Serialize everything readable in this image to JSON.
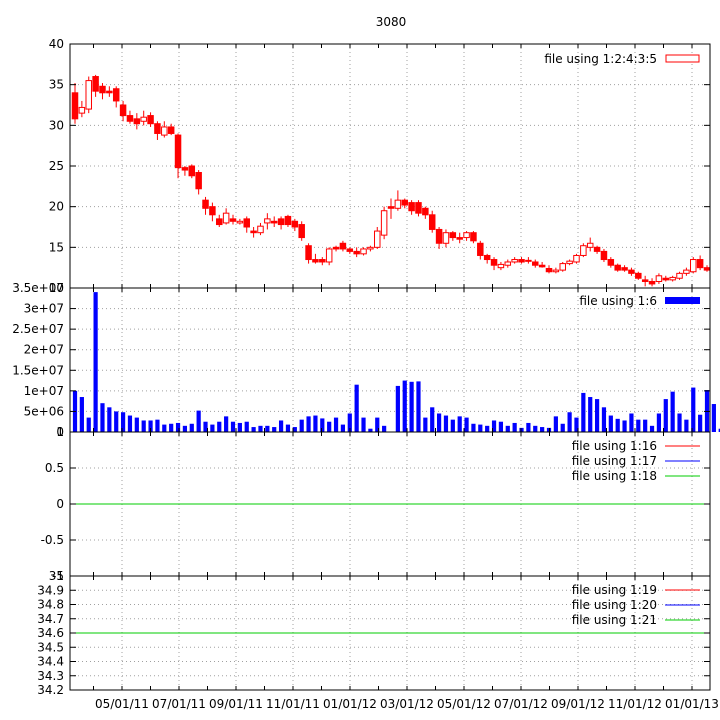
{
  "title": "3080",
  "colors": {
    "candle": "#ff0000",
    "volume": "#0000ff",
    "line_red": "#ff0000",
    "line_blue": "#0000ff",
    "line_green": "#00cc00",
    "grid": "#a0a0a0"
  },
  "x_ticks": [
    "05/01/11",
    "07/01/11",
    "09/01/11",
    "11/01/11",
    "01/01/12",
    "03/01/12",
    "05/01/12",
    "07/01/12",
    "09/01/12",
    "11/01/12",
    "01/01/13"
  ],
  "chart_data": [
    {
      "type": "candlestick",
      "ylim": [
        10,
        40
      ],
      "yticks": [
        "10",
        "15",
        "20",
        "25",
        "30",
        "35",
        "40"
      ],
      "legend": "file using 1:2:4:3:5",
      "candles": [
        {
          "o": 34.0,
          "h": 35.2,
          "l": 30.2,
          "c": 30.8
        },
        {
          "o": 31.5,
          "h": 33.0,
          "l": 31.0,
          "c": 32.2
        },
        {
          "o": 32.0,
          "h": 36.0,
          "l": 31.5,
          "c": 35.5
        },
        {
          "o": 36.0,
          "h": 36.2,
          "l": 33.5,
          "c": 34.2
        },
        {
          "o": 34.8,
          "h": 35.2,
          "l": 33.2,
          "c": 34.0
        },
        {
          "o": 34.2,
          "h": 34.8,
          "l": 33.5,
          "c": 34.0
        },
        {
          "o": 34.5,
          "h": 34.8,
          "l": 32.2,
          "c": 33.0
        },
        {
          "o": 32.5,
          "h": 33.0,
          "l": 30.5,
          "c": 31.2
        },
        {
          "o": 31.2,
          "h": 31.8,
          "l": 30.2,
          "c": 30.5
        },
        {
          "o": 30.8,
          "h": 31.5,
          "l": 29.5,
          "c": 30.2
        },
        {
          "o": 30.5,
          "h": 31.8,
          "l": 30.0,
          "c": 31.0
        },
        {
          "o": 31.2,
          "h": 31.6,
          "l": 29.8,
          "c": 30.2
        },
        {
          "o": 30.2,
          "h": 30.5,
          "l": 28.2,
          "c": 29.0
        },
        {
          "o": 28.8,
          "h": 30.5,
          "l": 28.5,
          "c": 29.8
        },
        {
          "o": 29.8,
          "h": 30.2,
          "l": 28.8,
          "c": 29.0
        },
        {
          "o": 28.8,
          "h": 29.0,
          "l": 23.5,
          "c": 24.8
        },
        {
          "o": 24.8,
          "h": 25.0,
          "l": 23.8,
          "c": 24.5
        },
        {
          "o": 25.0,
          "h": 25.2,
          "l": 23.5,
          "c": 23.8
        },
        {
          "o": 24.2,
          "h": 24.5,
          "l": 21.5,
          "c": 22.2
        },
        {
          "o": 20.8,
          "h": 21.2,
          "l": 19.0,
          "c": 19.8
        },
        {
          "o": 20.0,
          "h": 20.5,
          "l": 18.2,
          "c": 19.0
        },
        {
          "o": 18.5,
          "h": 19.0,
          "l": 17.5,
          "c": 17.8
        },
        {
          "o": 18.0,
          "h": 19.8,
          "l": 17.8,
          "c": 19.2
        },
        {
          "o": 18.5,
          "h": 19.0,
          "l": 17.8,
          "c": 18.2
        },
        {
          "o": 18.0,
          "h": 18.5,
          "l": 17.8,
          "c": 18.2
        },
        {
          "o": 18.5,
          "h": 18.8,
          "l": 16.8,
          "c": 17.5
        },
        {
          "o": 17.0,
          "h": 17.5,
          "l": 16.2,
          "c": 16.8
        },
        {
          "o": 16.8,
          "h": 18.0,
          "l": 16.5,
          "c": 17.6
        },
        {
          "o": 18.0,
          "h": 19.2,
          "l": 17.2,
          "c": 18.5
        },
        {
          "o": 18.2,
          "h": 18.8,
          "l": 17.5,
          "c": 18.0
        },
        {
          "o": 18.5,
          "h": 18.8,
          "l": 17.2,
          "c": 17.8
        },
        {
          "o": 18.8,
          "h": 19.0,
          "l": 17.5,
          "c": 17.8
        },
        {
          "o": 18.2,
          "h": 18.5,
          "l": 17.0,
          "c": 17.5
        },
        {
          "o": 17.8,
          "h": 18.2,
          "l": 15.8,
          "c": 16.2
        },
        {
          "o": 15.2,
          "h": 15.5,
          "l": 13.0,
          "c": 13.5
        },
        {
          "o": 13.5,
          "h": 14.2,
          "l": 13.0,
          "c": 13.2
        },
        {
          "o": 13.5,
          "h": 13.8,
          "l": 12.8,
          "c": 13.2
        },
        {
          "o": 13.2,
          "h": 15.0,
          "l": 12.8,
          "c": 14.8
        },
        {
          "o": 15.0,
          "h": 15.2,
          "l": 14.5,
          "c": 14.8
        },
        {
          "o": 15.5,
          "h": 15.8,
          "l": 14.5,
          "c": 14.8
        },
        {
          "o": 14.8,
          "h": 15.0,
          "l": 14.2,
          "c": 14.5
        },
        {
          "o": 14.5,
          "h": 15.0,
          "l": 13.8,
          "c": 14.2
        },
        {
          "o": 14.2,
          "h": 15.0,
          "l": 14.0,
          "c": 14.8
        },
        {
          "o": 14.8,
          "h": 15.2,
          "l": 14.5,
          "c": 15.0
        },
        {
          "o": 15.0,
          "h": 17.5,
          "l": 14.8,
          "c": 17.0
        },
        {
          "o": 16.5,
          "h": 20.0,
          "l": 16.0,
          "c": 19.5
        },
        {
          "o": 20.0,
          "h": 21.0,
          "l": 18.5,
          "c": 19.8
        },
        {
          "o": 19.8,
          "h": 22.0,
          "l": 19.5,
          "c": 20.8
        },
        {
          "o": 20.8,
          "h": 21.0,
          "l": 19.8,
          "c": 20.2
        },
        {
          "o": 20.5,
          "h": 20.8,
          "l": 19.0,
          "c": 19.5
        },
        {
          "o": 20.5,
          "h": 20.8,
          "l": 18.8,
          "c": 19.2
        },
        {
          "o": 19.8,
          "h": 20.0,
          "l": 18.5,
          "c": 19.0
        },
        {
          "o": 19.0,
          "h": 19.5,
          "l": 16.8,
          "c": 17.2
        },
        {
          "o": 17.2,
          "h": 17.5,
          "l": 14.8,
          "c": 15.5
        },
        {
          "o": 15.5,
          "h": 17.2,
          "l": 15.0,
          "c": 16.8
        },
        {
          "o": 16.8,
          "h": 17.0,
          "l": 15.8,
          "c": 16.2
        },
        {
          "o": 16.2,
          "h": 16.8,
          "l": 15.5,
          "c": 16.0
        },
        {
          "o": 16.2,
          "h": 17.0,
          "l": 15.8,
          "c": 16.8
        },
        {
          "o": 16.8,
          "h": 17.0,
          "l": 15.5,
          "c": 15.8
        },
        {
          "o": 15.5,
          "h": 15.8,
          "l": 13.5,
          "c": 14.0
        },
        {
          "o": 14.0,
          "h": 14.2,
          "l": 13.0,
          "c": 13.5
        },
        {
          "o": 13.5,
          "h": 13.8,
          "l": 12.2,
          "c": 12.8
        },
        {
          "o": 12.5,
          "h": 13.2,
          "l": 12.2,
          "c": 12.9
        },
        {
          "o": 12.8,
          "h": 13.5,
          "l": 12.5,
          "c": 13.2
        },
        {
          "o": 13.2,
          "h": 13.8,
          "l": 13.0,
          "c": 13.5
        },
        {
          "o": 13.5,
          "h": 13.8,
          "l": 13.0,
          "c": 13.2
        },
        {
          "o": 13.4,
          "h": 13.8,
          "l": 13.0,
          "c": 13.3
        },
        {
          "o": 13.2,
          "h": 13.5,
          "l": 12.5,
          "c": 12.8
        },
        {
          "o": 12.8,
          "h": 13.2,
          "l": 12.5,
          "c": 12.6
        },
        {
          "o": 12.4,
          "h": 12.8,
          "l": 11.8,
          "c": 12.0
        },
        {
          "o": 12.0,
          "h": 12.5,
          "l": 11.8,
          "c": 12.2
        },
        {
          "o": 12.2,
          "h": 13.2,
          "l": 12.0,
          "c": 13.0
        },
        {
          "o": 13.0,
          "h": 13.5,
          "l": 12.8,
          "c": 13.3
        },
        {
          "o": 13.2,
          "h": 14.2,
          "l": 13.0,
          "c": 14.0
        },
        {
          "o": 14.0,
          "h": 15.5,
          "l": 13.8,
          "c": 15.2
        },
        {
          "o": 15.0,
          "h": 16.2,
          "l": 14.5,
          "c": 15.5
        },
        {
          "o": 15.0,
          "h": 15.2,
          "l": 14.2,
          "c": 14.5
        },
        {
          "o": 14.5,
          "h": 14.8,
          "l": 13.2,
          "c": 13.5
        },
        {
          "o": 13.5,
          "h": 13.8,
          "l": 12.5,
          "c": 12.8
        },
        {
          "o": 12.8,
          "h": 13.0,
          "l": 12.0,
          "c": 12.2
        },
        {
          "o": 12.5,
          "h": 12.8,
          "l": 12.0,
          "c": 12.2
        },
        {
          "o": 12.2,
          "h": 12.5,
          "l": 11.5,
          "c": 11.8
        },
        {
          "o": 11.8,
          "h": 12.0,
          "l": 11.0,
          "c": 11.2
        },
        {
          "o": 11.0,
          "h": 11.5,
          "l": 10.2,
          "c": 10.8
        },
        {
          "o": 10.8,
          "h": 11.2,
          "l": 10.2,
          "c": 10.5
        },
        {
          "o": 10.8,
          "h": 11.8,
          "l": 10.5,
          "c": 11.5
        },
        {
          "o": 11.2,
          "h": 11.5,
          "l": 10.8,
          "c": 11.0
        },
        {
          "o": 11.0,
          "h": 11.5,
          "l": 10.8,
          "c": 11.3
        },
        {
          "o": 11.2,
          "h": 12.0,
          "l": 11.0,
          "c": 11.8
        },
        {
          "o": 11.8,
          "h": 12.5,
          "l": 11.5,
          "c": 12.2
        },
        {
          "o": 12.0,
          "h": 13.8,
          "l": 11.8,
          "c": 13.5
        },
        {
          "o": 13.5,
          "h": 14.0,
          "l": 12.2,
          "c": 12.5
        },
        {
          "o": 12.5,
          "h": 12.8,
          "l": 12.0,
          "c": 12.2
        }
      ]
    },
    {
      "type": "bar",
      "ylim": [
        0,
        35000000
      ],
      "yticks": [
        "0",
        "5e+06",
        "1e+07",
        "1.5e+07",
        "2e+07",
        "2.5e+07",
        "3e+07",
        "3.5e+07"
      ],
      "legend": "file using 1:6",
      "values": [
        10000000,
        8500000,
        3500000,
        34000000,
        7000000,
        6000000,
        5000000,
        4800000,
        4000000,
        3500000,
        2800000,
        2800000,
        3000000,
        1800000,
        2000000,
        2200000,
        1500000,
        2000000,
        5200000,
        2500000,
        1800000,
        2500000,
        3800000,
        2500000,
        2200000,
        2500000,
        1200000,
        1500000,
        1500000,
        1200000,
        2800000,
        1800000,
        1200000,
        3000000,
        3800000,
        4000000,
        3300000,
        2500000,
        3500000,
        1800000,
        4500000,
        11500000,
        3500000,
        800000,
        3500000,
        1500000,
        0,
        11200000,
        12500000,
        12200000,
        12300000,
        3500000,
        6000000,
        4500000,
        4000000,
        3000000,
        3800000,
        3500000,
        2000000,
        1800000,
        1500000,
        2800000,
        2500000,
        1500000,
        2200000,
        1000000,
        2200000,
        1500000,
        1200000,
        1000000,
        3800000,
        2000000,
        4800000,
        3500000,
        9500000,
        8500000,
        8000000,
        6000000,
        4000000,
        3200000,
        2800000,
        4500000,
        3000000,
        3000000,
        1500000,
        4500000,
        8000000,
        9800000,
        4500000,
        3000000,
        10800000,
        4200000,
        10200000,
        6800000,
        800000
      ]
    },
    {
      "type": "line",
      "ylim": [
        -1,
        1
      ],
      "yticks": [
        "-1",
        "-0.5",
        "0",
        "0.5",
        "1"
      ],
      "series": [
        {
          "name": "file using 1:16",
          "color": "#ff0000",
          "value": 0
        },
        {
          "name": "file using 1:17",
          "color": "#0000ff",
          "value": 0
        },
        {
          "name": "file using 1:18",
          "color": "#00cc00",
          "value": 0
        }
      ]
    },
    {
      "type": "line",
      "ylim": [
        34.2,
        35
      ],
      "yticks": [
        "34.2",
        "34.3",
        "34.4",
        "34.5",
        "34.6",
        "34.7",
        "34.8",
        "34.9",
        "35"
      ],
      "series": [
        {
          "name": "file using 1:19",
          "color": "#ff0000",
          "value": 34.6
        },
        {
          "name": "file using 1:20",
          "color": "#0000ff",
          "value": 34.6
        },
        {
          "name": "file using 1:21",
          "color": "#00cc00",
          "value": 34.6
        }
      ]
    }
  ]
}
